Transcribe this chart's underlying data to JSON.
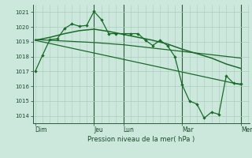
{
  "bg_color": "#cce8dc",
  "grid_color": "#aaccbb",
  "line_color": "#1a6b2a",
  "vline_color": "#2a5a3a",
  "xlabel": "Pression niveau de la mer( hPa )",
  "ylim": [
    1013.5,
    1021.5
  ],
  "yticks": [
    1014,
    1015,
    1016,
    1017,
    1018,
    1019,
    1020,
    1021
  ],
  "day_labels": [
    "Dim",
    "Jeu",
    "Lun",
    "Mar",
    "Mer"
  ],
  "day_positions": [
    0,
    48,
    72,
    120,
    168
  ],
  "xlim": [
    -2,
    175
  ],
  "series1": [
    [
      0,
      1017.0
    ],
    [
      6,
      1018.1
    ],
    [
      12,
      1019.15
    ],
    [
      18,
      1019.2
    ],
    [
      24,
      1019.9
    ],
    [
      30,
      1020.2
    ],
    [
      36,
      1020.05
    ],
    [
      42,
      1020.1
    ],
    [
      48,
      1021.05
    ],
    [
      54,
      1020.5
    ],
    [
      60,
      1019.55
    ],
    [
      66,
      1019.55
    ],
    [
      72,
      1019.55
    ],
    [
      78,
      1019.55
    ],
    [
      84,
      1019.55
    ],
    [
      90,
      1019.1
    ],
    [
      96,
      1018.75
    ],
    [
      102,
      1019.1
    ],
    [
      108,
      1018.75
    ],
    [
      114,
      1018.0
    ],
    [
      120,
      1016.1
    ],
    [
      126,
      1015.0
    ],
    [
      132,
      1014.8
    ],
    [
      138,
      1013.85
    ],
    [
      144,
      1014.25
    ],
    [
      150,
      1014.1
    ],
    [
      156,
      1016.7
    ],
    [
      162,
      1016.2
    ],
    [
      168,
      1016.15
    ]
  ],
  "series2_smooth": [
    [
      0,
      1019.1
    ],
    [
      12,
      1019.3
    ],
    [
      24,
      1019.55
    ],
    [
      36,
      1019.75
    ],
    [
      48,
      1019.85
    ],
    [
      60,
      1019.7
    ],
    [
      72,
      1019.5
    ],
    [
      84,
      1019.3
    ],
    [
      96,
      1019.1
    ],
    [
      108,
      1018.85
    ],
    [
      120,
      1018.5
    ],
    [
      132,
      1018.2
    ],
    [
      144,
      1017.9
    ],
    [
      156,
      1017.5
    ],
    [
      168,
      1017.2
    ]
  ],
  "series3_trend_low": [
    [
      0,
      1019.1
    ],
    [
      168,
      1016.1
    ]
  ],
  "series4_trend_high": [
    [
      0,
      1019.15
    ],
    [
      48,
      1018.95
    ],
    [
      72,
      1018.8
    ],
    [
      120,
      1018.35
    ],
    [
      168,
      1017.9
    ]
  ],
  "vlines": [
    48,
    72,
    120,
    168
  ]
}
